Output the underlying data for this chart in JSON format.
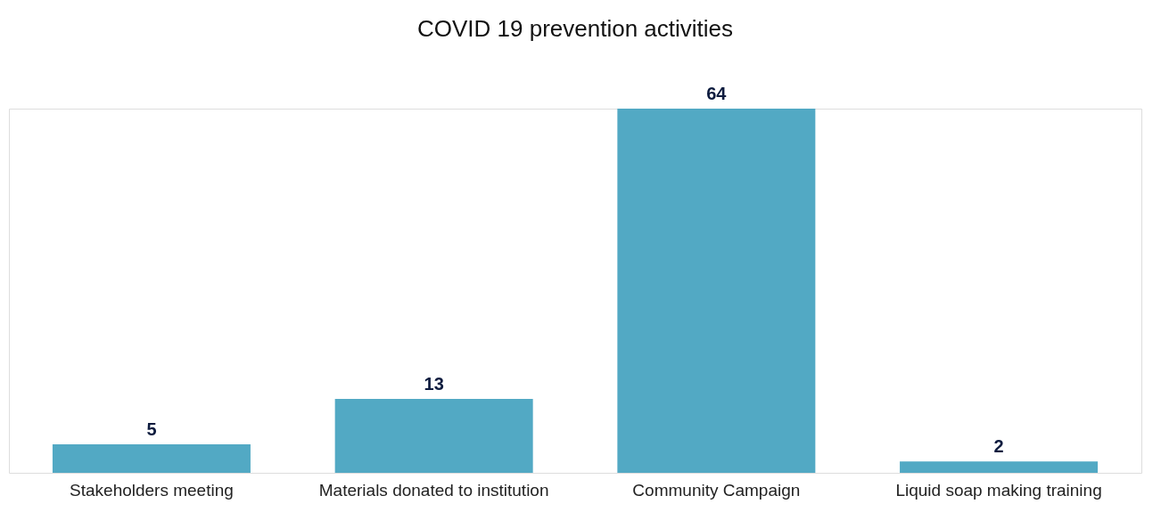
{
  "chart_data": {
    "type": "bar",
    "title": "COVID 19 prevention activities",
    "categories": [
      "Stakeholders meeting",
      "Materials donated to institution",
      "Community Campaign",
      "Liquid soap making training"
    ],
    "values": [
      5,
      13,
      64,
      2
    ],
    "color": "#52a9c4",
    "data_labels": true,
    "grid": false
  }
}
